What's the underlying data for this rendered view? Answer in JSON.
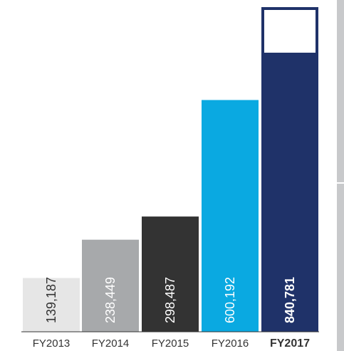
{
  "chart_data": {
    "type": "bar",
    "categories": [
      "FY2013",
      "FY2014",
      "FY2015",
      "FY2016",
      "FY2017"
    ],
    "values": [
      139187,
      238449,
      298487,
      600192,
      840781
    ],
    "value_labels": [
      "139,187",
      "238,449",
      "298,487",
      "600,192",
      "840,781"
    ],
    "bar_colors": [
      "#e6e6e6",
      "#a7a9ab",
      "#333333",
      "#0aa9e1",
      "#1f3269"
    ],
    "label_colors": [
      "#333333",
      "#ffffff",
      "#ffffff",
      "#ffffff",
      "#ffffff"
    ],
    "label_bold": [
      false,
      false,
      false,
      false,
      true
    ],
    "category_bold": [
      false,
      false,
      false,
      false,
      true
    ],
    "highlight_box_color": "#ffffff",
    "sidebar_color": "#c8c9cb",
    "axis_color": "#333333",
    "title": "",
    "xlabel": "",
    "ylabel": "",
    "grid": false,
    "legend": "none"
  }
}
